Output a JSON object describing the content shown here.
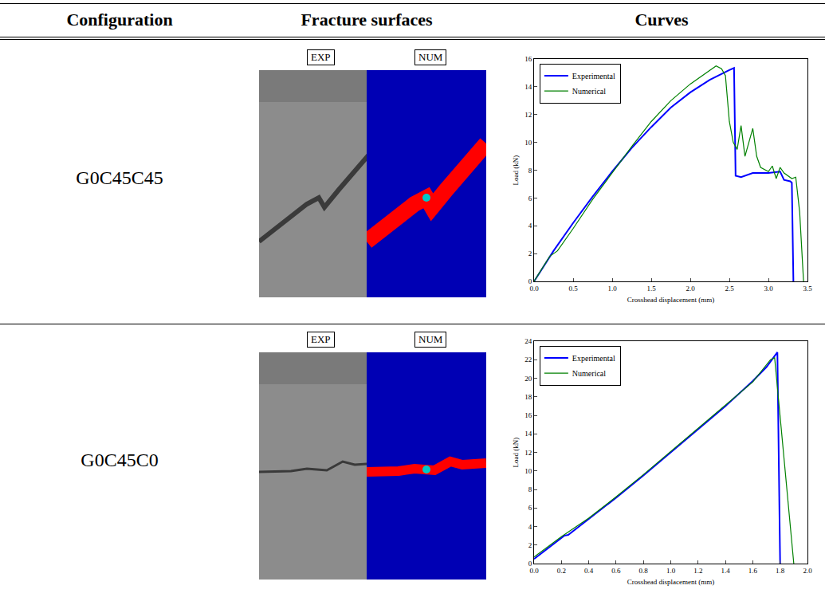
{
  "table": {
    "headers": [
      "Configuration",
      "Fracture surfaces",
      "Curves"
    ],
    "rows": [
      {
        "configuration": "G0C45C45",
        "image_labels": [
          "EXP",
          "NUM"
        ]
      },
      {
        "configuration": "G0C45C0",
        "image_labels": [
          "EXP",
          "NUM"
        ]
      }
    ]
  },
  "chart_data": [
    {
      "type": "line",
      "x_label": "Crosshead displacement (mm)",
      "y_label": "Load (kN)",
      "xlim": [
        0,
        3.5
      ],
      "xticks": [
        {
          "value": 0,
          "label": "0.0"
        },
        {
          "value": 0.5,
          "label": "0.5"
        },
        {
          "value": 1,
          "label": "1.0"
        },
        {
          "value": 1.5,
          "label": "1.5"
        },
        {
          "value": 2,
          "label": "2.0"
        },
        {
          "value": 2.5,
          "label": "2.5"
        },
        {
          "value": 3,
          "label": "3.0"
        },
        {
          "value": 3.5,
          "label": "3.5"
        }
      ],
      "ylim": [
        0,
        16
      ],
      "yticks": [
        0,
        2,
        4,
        6,
        8,
        10,
        12,
        14,
        16
      ],
      "grid": false,
      "legend": "upper left",
      "series": [
        {
          "name": "Experimental",
          "color": "#0000ff",
          "x": [
            0,
            0.25,
            0.5,
            0.75,
            1.0,
            1.25,
            1.5,
            1.75,
            2.0,
            2.25,
            2.5,
            2.56,
            2.58,
            2.65,
            2.8,
            3.0,
            3.15,
            3.2,
            3.28,
            3.3,
            3.32
          ],
          "values": [
            0,
            2.2,
            4.2,
            6.1,
            7.9,
            9.6,
            11.1,
            12.5,
            13.6,
            14.5,
            15.2,
            15.35,
            7.6,
            7.5,
            7.8,
            7.8,
            7.9,
            7.3,
            7.2,
            7.1,
            0
          ]
        },
        {
          "name": "Numerical",
          "color": "#008000",
          "x": [
            0,
            0.2,
            0.3,
            0.5,
            0.75,
            1.0,
            1.25,
            1.5,
            1.75,
            2.0,
            2.2,
            2.33,
            2.4,
            2.45,
            2.5,
            2.55,
            2.6,
            2.65,
            2.7,
            2.75,
            2.8,
            2.85,
            2.9,
            3.0,
            3.05,
            3.1,
            3.15,
            3.2,
            3.3,
            3.35,
            3.4,
            3.45
          ],
          "values": [
            0,
            1.8,
            2.2,
            3.8,
            5.9,
            7.8,
            9.7,
            11.5,
            13.0,
            14.2,
            15.0,
            15.5,
            15.3,
            14.8,
            11.5,
            10.0,
            9.5,
            11.2,
            9.0,
            10.0,
            11.0,
            9.0,
            8.2,
            7.9,
            8.3,
            7.4,
            8.2,
            7.8,
            7.4,
            7.5,
            5.0,
            0
          ]
        }
      ]
    },
    {
      "type": "line",
      "x_label": "Crosshead displacement (mm)",
      "y_label": "Load (kN)",
      "xlim": [
        0,
        2.0
      ],
      "xticks": [
        {
          "value": 0,
          "label": "0.0"
        },
        {
          "value": 0.2,
          "label": "0.2"
        },
        {
          "value": 0.4,
          "label": "0.4"
        },
        {
          "value": 0.6,
          "label": "0.6"
        },
        {
          "value": 0.8,
          "label": "0.8"
        },
        {
          "value": 1.0,
          "label": "1.0"
        },
        {
          "value": 1.2,
          "label": "1.2"
        },
        {
          "value": 1.4,
          "label": "1.4"
        },
        {
          "value": 1.6,
          "label": "1.6"
        },
        {
          "value": 1.8,
          "label": "1.8"
        },
        {
          "value": 2.0,
          "label": "2.0"
        }
      ],
      "ylim": [
        0,
        24
      ],
      "yticks": [
        0,
        2,
        4,
        6,
        8,
        10,
        12,
        14,
        16,
        18,
        20,
        22,
        24
      ],
      "grid": false,
      "legend": "upper left",
      "series": [
        {
          "name": "Experimental",
          "color": "#0000ff",
          "x": [
            0,
            0.2,
            0.22,
            0.25,
            0.4,
            0.6,
            0.8,
            1.0,
            1.2,
            1.4,
            1.6,
            1.7,
            1.78,
            1.8
          ],
          "values": [
            0.5,
            2.7,
            3.0,
            3.1,
            4.8,
            7.1,
            9.5,
            12.0,
            14.5,
            17.0,
            19.7,
            21.2,
            22.8,
            0
          ]
        },
        {
          "name": "Numerical",
          "color": "#008000",
          "x": [
            0,
            0.2,
            0.4,
            0.6,
            0.8,
            1.0,
            1.2,
            1.4,
            1.6,
            1.73,
            1.76,
            1.9
          ],
          "values": [
            0.7,
            2.9,
            4.9,
            7.2,
            9.6,
            12.1,
            14.6,
            17.1,
            19.6,
            22.0,
            22.2,
            0
          ]
        }
      ]
    }
  ]
}
